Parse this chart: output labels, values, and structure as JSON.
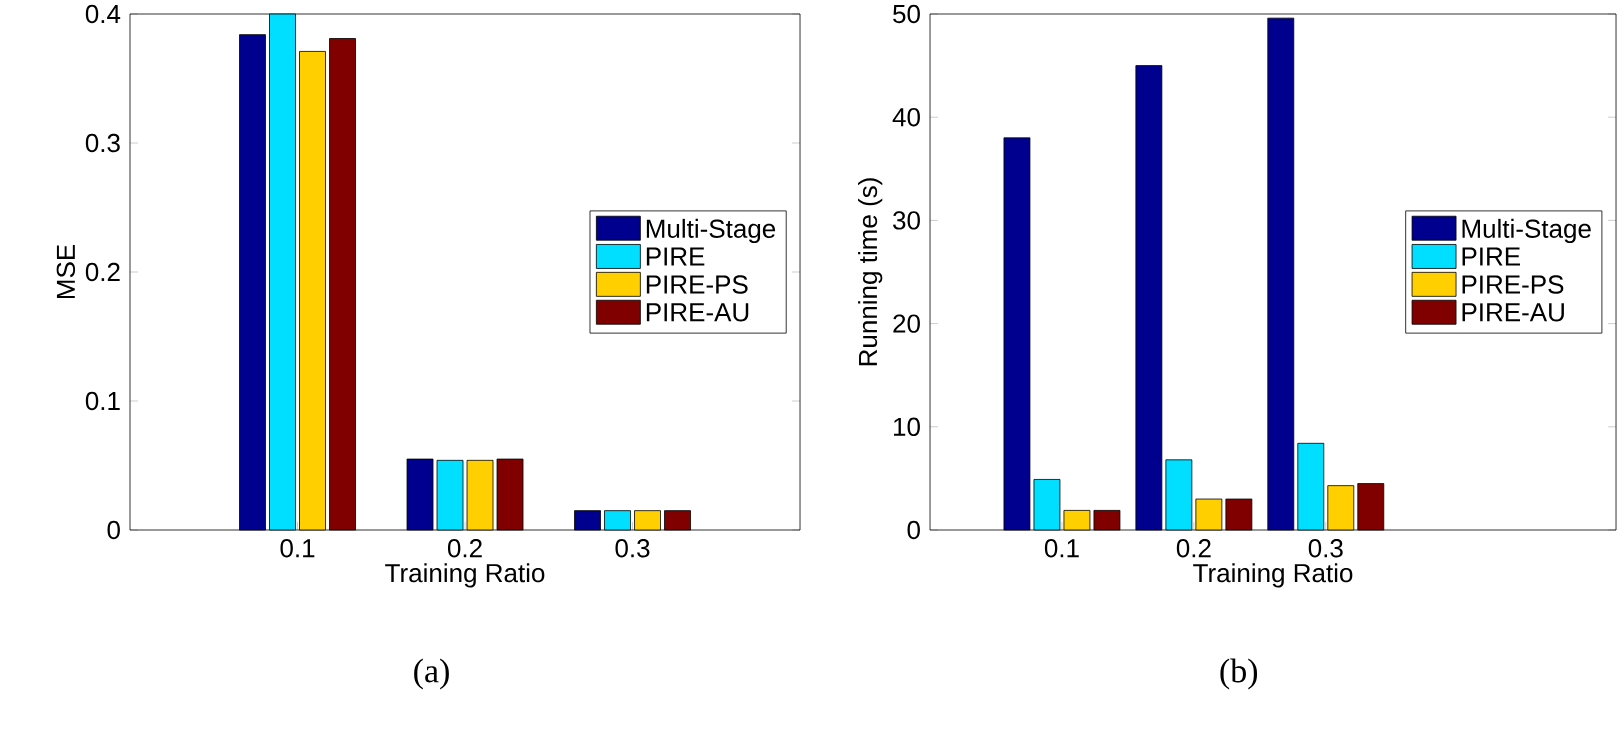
{
  "chart_data": [
    {
      "type": "bar",
      "categories": [
        "0.1",
        "0.2",
        "0.3"
      ],
      "xlabel": "Training Ratio",
      "ylabel": "MSE",
      "ylim": [
        0,
        0.4
      ],
      "yticks": [
        0,
        0.1,
        0.2,
        0.3,
        0.4
      ],
      "legend": "right",
      "annotations": [
        "(a)"
      ],
      "series": [
        {
          "name": "Multi-Stage",
          "color": "#00008f",
          "values": [
            0.384,
            0.055,
            0.015
          ]
        },
        {
          "name": "PIRE",
          "color": "#00dfff",
          "values": [
            0.4,
            0.054,
            0.015
          ]
        },
        {
          "name": "PIRE-PS",
          "color": "#ffcf00",
          "values": [
            0.371,
            0.054,
            0.015
          ]
        },
        {
          "name": "PIRE-AU",
          "color": "#800000",
          "values": [
            0.381,
            0.055,
            0.015
          ]
        }
      ]
    },
    {
      "type": "bar",
      "categories": [
        "0.1",
        "0.2",
        "0.3"
      ],
      "xlabel": "Training Ratio",
      "ylabel": "Running time (s)",
      "ylim": [
        0,
        50
      ],
      "yticks": [
        0,
        10,
        20,
        30,
        40,
        50
      ],
      "legend": "right",
      "annotations": [
        "(b)"
      ],
      "series": [
        {
          "name": "Multi-Stage",
          "color": "#00008f",
          "values": [
            38,
            45,
            49.6
          ]
        },
        {
          "name": "PIRE",
          "color": "#00dfff",
          "values": [
            4.9,
            6.8,
            8.4
          ]
        },
        {
          "name": "PIRE-PS",
          "color": "#ffcf00",
          "values": [
            1.9,
            3.0,
            4.3
          ]
        },
        {
          "name": "PIRE-AU",
          "color": "#800000",
          "values": [
            1.9,
            3.0,
            4.5
          ]
        }
      ]
    }
  ]
}
